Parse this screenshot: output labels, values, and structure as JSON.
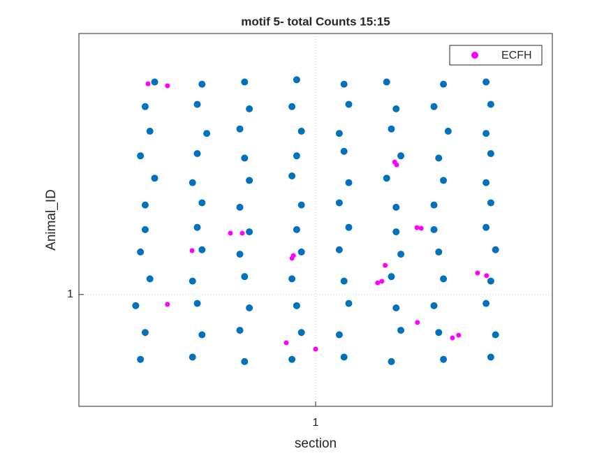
{
  "chart_data": {
    "type": "scatter",
    "title": "motif 5- total Counts 15:15",
    "xlabel": "section",
    "ylabel": "Animal_ID",
    "xlim": [
      0.5,
      1.5
    ],
    "ylim": [
      0.5,
      2.1667
    ],
    "xticks": [
      1
    ],
    "yticks": [
      1
    ],
    "grid": true,
    "legend": "northeast",
    "series": [
      {
        "color": "#0072BD",
        "x": [
          0.64,
          0.76,
          0.84,
          0.97,
          1.05,
          1.17,
          1.25,
          1.37,
          0.66,
          0.74,
          0.86,
          0.95,
          1.07,
          1.15,
          1.27,
          1.36,
          0.63,
          0.75,
          0.85,
          0.96,
          1.06,
          1.18,
          1.26,
          1.37,
          0.65,
          0.77,
          0.84,
          0.97,
          1.05,
          1.16,
          1.28,
          1.36,
          0.64,
          0.75,
          0.86,
          0.95,
          1.07,
          1.17,
          1.25,
          1.37,
          0.66,
          0.76,
          0.85,
          0.96,
          1.06,
          1.15,
          1.27,
          1.36,
          0.63,
          0.74,
          0.85,
          0.95,
          1.06,
          1.16,
          1.27,
          1.37,
          0.64,
          0.76,
          0.84,
          0.97,
          1.05,
          1.18,
          1.26,
          1.38,
          0.62,
          0.75,
          0.86,
          0.96,
          1.07,
          1.17,
          1.25,
          1.36,
          0.65,
          0.74,
          0.85,
          0.95,
          1.06,
          1.16,
          1.27,
          1.37,
          0.63,
          0.76,
          0.84,
          0.97,
          1.05,
          1.18,
          1.26,
          1.38,
          0.64,
          0.75,
          0.86,
          0.96,
          1.07,
          1.17,
          1.25,
          1.36
        ],
        "values": [
          1.4,
          1.41,
          1.39,
          1.4,
          1.41,
          1.39,
          1.4,
          1.41,
          1.52,
          1.5,
          1.51,
          1.53,
          1.5,
          1.52,
          1.51,
          1.5,
          1.62,
          1.63,
          1.61,
          1.62,
          1.64,
          1.62,
          1.61,
          1.63,
          1.73,
          1.72,
          1.74,
          1.73,
          1.72,
          1.74,
          1.73,
          1.72,
          1.84,
          1.85,
          1.83,
          1.84,
          1.85,
          1.83,
          1.84,
          1.85,
          1.95,
          1.94,
          1.95,
          1.96,
          1.94,
          1.95,
          1.94,
          1.95,
          0.71,
          0.72,
          0.7,
          0.71,
          0.72,
          0.7,
          0.71,
          0.72,
          0.83,
          0.82,
          0.84,
          0.83,
          0.82,
          0.84,
          0.83,
          0.82,
          0.95,
          0.96,
          0.94,
          0.95,
          0.96,
          0.94,
          0.95,
          0.96,
          1.07,
          1.06,
          1.08,
          1.07,
          1.06,
          1.08,
          1.07,
          1.06,
          1.19,
          1.2,
          1.18,
          1.19,
          1.2,
          1.18,
          1.19,
          1.2,
          1.29,
          1.3,
          1.28,
          1.29,
          1.3,
          1.28,
          1.29,
          1.3
        ]
      },
      {
        "name": "ECFH",
        "color": "#FF00FF",
        "x": [
          0.646,
          0.687,
          1.167,
          1.171,
          0.82,
          0.845,
          0.739,
          0.953,
          0.95,
          1.147,
          1.131,
          1.14,
          1.342,
          1.361,
          0.687,
          1.215,
          0.938,
          1.0,
          1.302,
          1.289,
          1.214,
          1.223
        ],
        "values": [
          1.942,
          1.933,
          1.592,
          1.58,
          1.274,
          1.274,
          1.196,
          1.174,
          1.162,
          1.13,
          1.052,
          1.059,
          1.096,
          1.084,
          0.956,
          0.875,
          0.784,
          0.756,
          0.818,
          0.806,
          1.299,
          1.296
        ]
      }
    ]
  }
}
